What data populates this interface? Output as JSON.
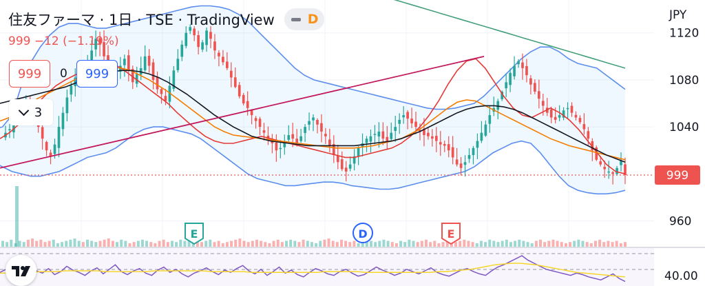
{
  "header": {
    "title": "住友ファーマ · 1日 · TSE · TradingView",
    "pill_badge": "D",
    "quote": "999 −12 (−1.19%)",
    "sell_price": "999",
    "spread": "0",
    "buy_price": "999",
    "indicators_count": "3"
  },
  "currency": "JPY",
  "colors": {
    "up": "#26a69a",
    "down": "#ef5350",
    "band": "#5b8def",
    "sma_short": "#e53935",
    "sma_mid": "#f57c00",
    "sma_long": "#131722",
    "sma_200": "#43a07a",
    "trendline": "#c2185b",
    "rsi": "#7e57c2",
    "rsi_ma": "#f6d52b"
  },
  "icons": {
    "collapse": "chevron-down-icon",
    "logo": "tradingview-logo-icon",
    "pill": "minus-icon"
  },
  "chart_data": {
    "type": "candlestick",
    "symbol": "住友ファーマ",
    "interval": "1日",
    "exchange": "TSE",
    "yaxis": {
      "ticks": [
        1120,
        1080,
        1040,
        999,
        960
      ],
      "tick_labels": [
        "1120",
        "1080",
        "1040",
        "999",
        "960"
      ],
      "ylim": [
        938,
        1148
      ]
    },
    "last_price": 999,
    "last_price_label": "999",
    "change": -12,
    "change_pct": -1.19,
    "candles_close": [
      1035,
      1038,
      1042,
      1048,
      1055,
      1060,
      1052,
      1045,
      1040,
      1030,
      1020,
      1015,
      1025,
      1040,
      1052,
      1065,
      1075,
      1082,
      1090,
      1085,
      1095,
      1105,
      1115,
      1110,
      1100,
      1090,
      1080,
      1085,
      1092,
      1098,
      1088,
      1078,
      1085,
      1090,
      1100,
      1092,
      1080,
      1072,
      1068,
      1062,
      1075,
      1088,
      1098,
      1110,
      1120,
      1125,
      1118,
      1108,
      1112,
      1122,
      1115,
      1105,
      1100,
      1095,
      1090,
      1082,
      1074,
      1066,
      1060,
      1056,
      1050,
      1045,
      1040,
      1035,
      1030,
      1026,
      1020,
      1022,
      1028,
      1033,
      1030,
      1026,
      1032,
      1040,
      1045,
      1048,
      1042,
      1036,
      1032,
      1024,
      1016,
      1010,
      1004,
      1002,
      1008,
      1015,
      1022,
      1026,
      1030,
      1032,
      1034,
      1036,
      1030,
      1028,
      1035,
      1040,
      1046,
      1050,
      1047,
      1043,
      1040,
      1036,
      1033,
      1032,
      1030,
      1028,
      1025,
      1024,
      1020,
      1014,
      1008,
      1005,
      1010,
      1016,
      1022,
      1028,
      1035,
      1042,
      1050,
      1056,
      1062,
      1070,
      1078,
      1086,
      1092,
      1096,
      1090,
      1084,
      1076,
      1070,
      1064,
      1058,
      1052,
      1048,
      1046,
      1050,
      1054,
      1056,
      1052,
      1048,
      1044,
      1038,
      1030,
      1020,
      1012,
      1008,
      1004,
      1002,
      1000,
      1005,
      1011,
      999
    ],
    "bollinger": {
      "upper": [
        1038,
        1040,
        1050,
        1075,
        1095,
        1108,
        1118,
        1125,
        1128,
        1128,
        1126,
        1124,
        1124,
        1126,
        1128,
        1130,
        1132,
        1134,
        1136,
        1138,
        1140,
        1142,
        1143,
        1143,
        1142,
        1140,
        1136,
        1130,
        1122,
        1114,
        1106,
        1098,
        1090,
        1084,
        1080,
        1078,
        1076,
        1074,
        1072,
        1070,
        1068,
        1066,
        1064,
        1062,
        1060,
        1058,
        1056,
        1055,
        1055,
        1056,
        1058,
        1060,
        1066,
        1074,
        1082,
        1090,
        1098,
        1104,
        1108,
        1108,
        1104,
        1098,
        1094,
        1092,
        1090,
        1084,
        1078,
        1072
      ],
      "lower": [
        1010,
        1006,
        1002,
        1000,
        998,
        998,
        1000,
        1002,
        1006,
        1010,
        1014,
        1016,
        1018,
        1022,
        1028,
        1034,
        1038,
        1040,
        1040,
        1038,
        1036,
        1034,
        1030,
        1024,
        1018,
        1012,
        1006,
        1000,
        996,
        994,
        992,
        990,
        990,
        991,
        992,
        993,
        993,
        992,
        990,
        989,
        988,
        987,
        987,
        988,
        990,
        992,
        994,
        996,
        998,
        1000,
        1002,
        1006,
        1012,
        1018,
        1022,
        1026,
        1028,
        1026,
        1018,
        1008,
        998,
        990,
        986,
        984,
        983,
        983,
        984,
        986
      ]
    },
    "moving_averages": [
      {
        "name": "short",
        "values": [
          1030,
          1035,
          1042,
          1050,
          1060,
          1068,
          1075,
          1080,
          1084,
          1088,
          1092,
          1094,
          1094,
          1090,
          1084,
          1078,
          1072,
          1066,
          1060,
          1052,
          1045,
          1038,
          1032,
          1028,
          1026,
          1026,
          1028,
          1030,
          1032,
          1030,
          1028,
          1026,
          1024,
          1022,
          1020,
          1018,
          1016,
          1014,
          1014,
          1016,
          1018,
          1020,
          1022,
          1026,
          1032,
          1040,
          1050,
          1062,
          1076,
          1088,
          1096,
          1098,
          1090,
          1078,
          1066,
          1056,
          1050,
          1048,
          1052,
          1056,
          1052,
          1046,
          1038,
          1028,
          1018,
          1008,
          1002,
          1000
        ]
      },
      {
        "name": "mid",
        "values": [
          1045,
          1048,
          1052,
          1058,
          1064,
          1068,
          1072,
          1076,
          1080,
          1084,
          1088,
          1090,
          1091,
          1090,
          1088,
          1084,
          1080,
          1075,
          1070,
          1064,
          1058,
          1052,
          1046,
          1040,
          1036,
          1033,
          1032,
          1031,
          1030,
          1029,
          1028,
          1027,
          1026,
          1025,
          1024,
          1023,
          1022,
          1022,
          1022,
          1023,
          1024,
          1026,
          1028,
          1030,
          1034,
          1038,
          1044,
          1050,
          1056,
          1061,
          1063,
          1062,
          1058,
          1054,
          1050,
          1046,
          1042,
          1038,
          1034,
          1030,
          1027,
          1024,
          1022,
          1020,
          1018,
          1016,
          1014,
          1012
        ]
      },
      {
        "name": "long",
        "values": [
          1060,
          1062,
          1064,
          1066,
          1068,
          1070,
          1072,
          1074,
          1077,
          1080,
          1083,
          1085,
          1087,
          1088,
          1088,
          1087,
          1085,
          1082,
          1078,
          1073,
          1068,
          1062,
          1056,
          1050,
          1045,
          1040,
          1036,
          1032,
          1030,
          1028,
          1027,
          1026,
          1025,
          1024,
          1024,
          1024,
          1024,
          1024,
          1024,
          1025,
          1026,
          1027,
          1028,
          1030,
          1033,
          1036,
          1040,
          1044,
          1048,
          1052,
          1055,
          1057,
          1058,
          1058,
          1057,
          1055,
          1052,
          1048,
          1044,
          1040,
          1036,
          1032,
          1028,
          1024,
          1020,
          1016,
          1013,
          1010
        ]
      },
      {
        "name": "sma200",
        "values": [
          1150,
          1150,
          1150,
          1148,
          1146,
          1144,
          1142,
          1140,
          1138,
          1136,
          1134,
          1132,
          1130,
          1128,
          1126,
          1124,
          1122,
          1120,
          1118,
          1116,
          1114,
          1112,
          1110,
          1108,
          1106,
          1104,
          1102,
          1100,
          1098,
          1096,
          1094,
          1092,
          1090
        ]
      }
    ],
    "trendline": {
      "from": [
        0,
        1005
      ],
      "to": [
        103,
        1100
      ]
    },
    "event_markers": [
      {
        "label": "E",
        "kind": "earnings",
        "index": 40
      },
      {
        "label": "D",
        "kind": "dividend",
        "index": 77
      },
      {
        "label": "E",
        "kind": "earnings",
        "index": 96
      }
    ],
    "volume": [
      5,
      4,
      6,
      3,
      5,
      4,
      6,
      7,
      5,
      6,
      4,
      5,
      6,
      3,
      4,
      5,
      6,
      7,
      5,
      4,
      6,
      5,
      4,
      5,
      6,
      7,
      5,
      4,
      6,
      5,
      3,
      4,
      5,
      6,
      5,
      4,
      3,
      5,
      6,
      4,
      5,
      4,
      6,
      5,
      7,
      6,
      5,
      4,
      5,
      6,
      4,
      5,
      3,
      4,
      5,
      6,
      7,
      5,
      4,
      5,
      6,
      5,
      4,
      3,
      5,
      6,
      4,
      5,
      6,
      5,
      4,
      6,
      5,
      4,
      3,
      5,
      6,
      7,
      5,
      4,
      6,
      5,
      4,
      5,
      3,
      4,
      6,
      5,
      4,
      5,
      6,
      5,
      4,
      3,
      5,
      4,
      6,
      5,
      4,
      5,
      6,
      4,
      5,
      3,
      4,
      6,
      5,
      4,
      5,
      6,
      5,
      4,
      3,
      5,
      4,
      6,
      5,
      4,
      5,
      6,
      4,
      5,
      6,
      5,
      4,
      3,
      5,
      6,
      4,
      5,
      6,
      5,
      4,
      3,
      4,
      5,
      6,
      5,
      4,
      3,
      5,
      6,
      4,
      5,
      4,
      5,
      3,
      4
    ],
    "rsi_panel": {
      "label": "40.00",
      "rsi": [
        48,
        52,
        46,
        50,
        44,
        55,
        50,
        47,
        53,
        45,
        49,
        56,
        51,
        48,
        44,
        50,
        54,
        46,
        52,
        58,
        49,
        45,
        50,
        53,
        47,
        44,
        51,
        55,
        48,
        52,
        46,
        42,
        47,
        50,
        54,
        49,
        45,
        51,
        48,
        53,
        57,
        50,
        46,
        52,
        44,
        49,
        55,
        47,
        51,
        45,
        42,
        48,
        53,
        50,
        46,
        44,
        49,
        52,
        47,
        43,
        45,
        50,
        55,
        51,
        48,
        44,
        47,
        52,
        49,
        46,
        50,
        54,
        48,
        45,
        43,
        47,
        51,
        53,
        49,
        46,
        44,
        50,
        55,
        58,
        62,
        66,
        70,
        64,
        60,
        56,
        52,
        50,
        48,
        46,
        44,
        47,
        45,
        42,
        40,
        38,
        42,
        46,
        40,
        36
      ],
      "ma": [
        47,
        47,
        48,
        48,
        48,
        49,
        49,
        49,
        50,
        50,
        50,
        50,
        50,
        49,
        49,
        49,
        49,
        49,
        49,
        50,
        50,
        50,
        50,
        50,
        50,
        50,
        49,
        49,
        49,
        49,
        49,
        48,
        48,
        48,
        48,
        48,
        48,
        48,
        48,
        48,
        49,
        49,
        49,
        49,
        49,
        48,
        48,
        48,
        48,
        48,
        48,
        48,
        48,
        48,
        49,
        49,
        50,
        51,
        52,
        54,
        56,
        58,
        59,
        60,
        60,
        59,
        58,
        56,
        54,
        52,
        50,
        48,
        47,
        46,
        45,
        44,
        43,
        42
      ]
    }
  }
}
